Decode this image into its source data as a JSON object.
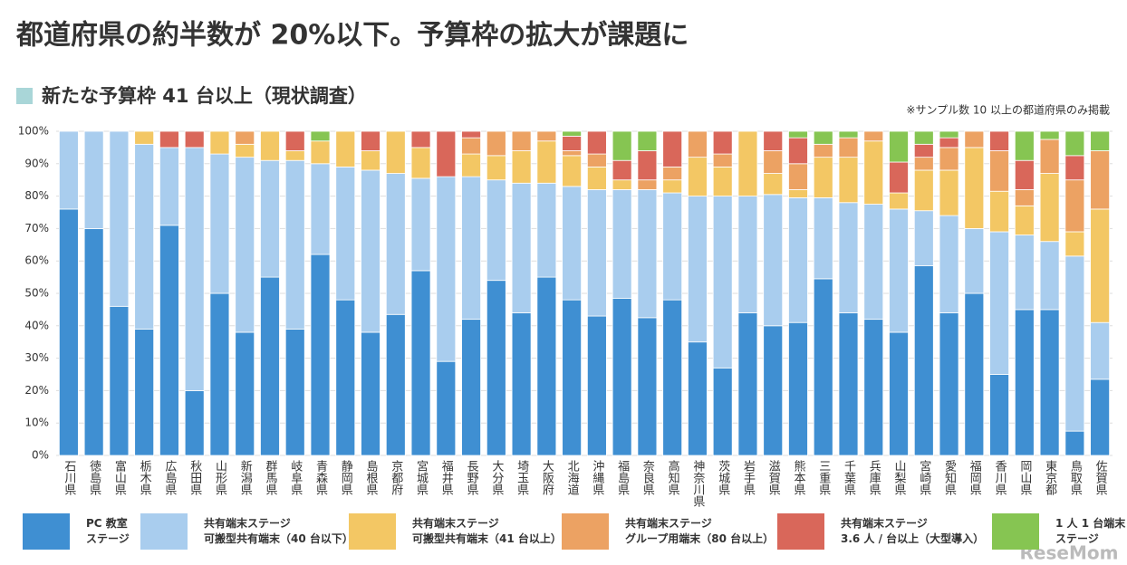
{
  "title": "都道府県の約半数が 20%以下。予算枠の拡大が課題に",
  "watermark": "ReseMom",
  "chart_data": {
    "type": "stacked-bar",
    "subtitle": "新たな予算枠 41 台以上（現状調査）",
    "subtitle_color": "#a9d6d8",
    "note": "※サンプル数 10 以上の都道府県のみ掲載",
    "categories": [
      "石川県",
      "徳島県",
      "富山県",
      "栃木県",
      "広島県",
      "秋田県",
      "山形県",
      "新潟県",
      "群馬県",
      "岐阜県",
      "青森県",
      "静岡県",
      "島根県",
      "京都府",
      "宮城県",
      "福井県",
      "長野県",
      "大分県",
      "埼玉県",
      "大阪府",
      "北海道",
      "沖縄県",
      "福島県",
      "奈良県",
      "高知県",
      "神奈川県",
      "茨城県",
      "岩手県",
      "滋賀県",
      "熊本県",
      "三重県",
      "千葉県",
      "兵庫県",
      "山梨県",
      "宮崎県",
      "愛知県",
      "福岡県",
      "香川県",
      "岡山県",
      "東京都",
      "鳥取県",
      "佐賀県"
    ],
    "series": [
      {
        "name": "PC 教室\nステージ",
        "color": "#3f8fd2",
        "values": [
          76,
          70,
          46,
          39,
          71,
          20,
          50,
          38,
          55,
          39,
          62,
          48,
          38,
          43.5,
          57,
          29,
          42,
          54,
          44,
          55,
          48,
          43,
          48.5,
          42.5,
          48,
          35,
          27,
          44,
          40,
          41,
          54.5,
          44,
          42,
          38,
          58.5,
          44,
          50,
          25,
          45,
          45,
          7.5,
          23.5
        ]
      },
      {
        "name": "共有端末ステージ\n可搬型共有端末（40 台以下）",
        "color": "#a9cdee",
        "values": [
          24,
          30,
          54,
          57,
          24,
          75,
          43,
          54,
          36,
          52,
          28,
          41,
          50,
          43.5,
          28.5,
          57,
          44,
          31,
          40,
          29,
          35,
          39,
          33.5,
          39.5,
          33,
          45,
          53,
          36,
          40.5,
          38.5,
          25,
          34,
          35.5,
          38,
          17,
          30,
          20,
          44,
          23,
          21,
          54,
          17.5
        ]
      },
      {
        "name": "共有端末ステージ\n可搬型共有端末（41 台以上）",
        "color": "#f3c764",
        "values": [
          0,
          0,
          0,
          4,
          0,
          0,
          7,
          4,
          9,
          3,
          7,
          11,
          6,
          13,
          9.5,
          0,
          7,
          7.5,
          10,
          13,
          9.5,
          7,
          3,
          0,
          4,
          12,
          9,
          20,
          6.5,
          2.5,
          12.5,
          14,
          19.5,
          5,
          12.5,
          14,
          25,
          12.5,
          9,
          21,
          7.5,
          35
        ]
      },
      {
        "name": "共有端末ステージ\nグループ用端末（80 台以上）",
        "color": "#eca263",
        "values": [
          0,
          0,
          0,
          0,
          0,
          0,
          0,
          4,
          0,
          0,
          0,
          0,
          0,
          0,
          0,
          0,
          5,
          7.5,
          6,
          3,
          1.5,
          4,
          0,
          3,
          4,
          8,
          4,
          0,
          7,
          8,
          4,
          6,
          3,
          0,
          4,
          7,
          5,
          12.5,
          5,
          10.5,
          16,
          18
        ]
      },
      {
        "name": "共有端末ステージ\n3.6 人 / 台以上（大型導入）",
        "color": "#d9675a",
        "values": [
          0,
          0,
          0,
          0,
          5,
          5,
          0,
          0,
          0,
          6,
          0,
          0,
          6,
          0,
          5,
          14,
          2,
          0,
          0,
          0,
          4.5,
          7,
          6,
          9,
          11,
          0,
          7,
          0,
          6,
          8,
          0,
          0,
          0,
          9.5,
          4,
          3,
          0,
          6,
          9,
          0,
          7.5,
          0
        ]
      },
      {
        "name": "1 人 1 台端末\nステージ",
        "color": "#86c552",
        "values": [
          0,
          0,
          0,
          0,
          0,
          0,
          0,
          0,
          0,
          0,
          3,
          0,
          0,
          0,
          0,
          0,
          0,
          0,
          0,
          0,
          1.5,
          0,
          9,
          6,
          0,
          0,
          0,
          0,
          0,
          2,
          4,
          2,
          0,
          9.5,
          4,
          2,
          0,
          0,
          9,
          2.5,
          7.5,
          6
        ]
      }
    ],
    "ylim": [
      0,
      100
    ],
    "yticks": [
      {
        "value": 0,
        "label": "0%"
      },
      {
        "value": 10,
        "label": "10%"
      },
      {
        "value": 20,
        "label": "20%"
      },
      {
        "value": 30,
        "label": "30%"
      },
      {
        "value": 40,
        "label": "40%"
      },
      {
        "value": 50,
        "label": "50%"
      },
      {
        "value": 60,
        "label": "60%"
      },
      {
        "value": 70,
        "label": "70%"
      },
      {
        "value": 80,
        "label": "80%"
      },
      {
        "value": 90,
        "label": "90%"
      },
      {
        "value": 100,
        "label": "100%"
      }
    ],
    "grid": true
  }
}
